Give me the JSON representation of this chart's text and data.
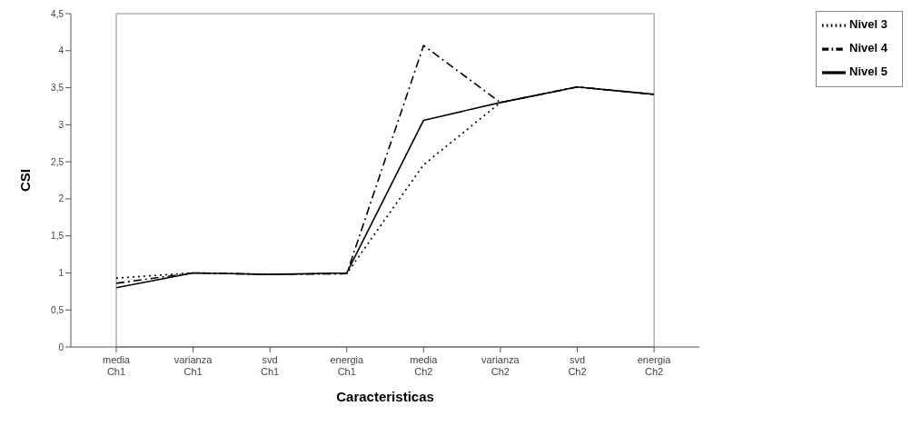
{
  "chart_data": {
    "type": "line",
    "xlabel": "Caracteristicas",
    "ylabel": "CSI",
    "categories": [
      "media Ch1",
      "varianza Ch1",
      "svd Ch1",
      "energia Ch1",
      "media Ch2",
      "varianza Ch2",
      "svd Ch2",
      "energia Ch2"
    ],
    "series": [
      {
        "name": "Nivel 3",
        "color": "#000000",
        "line_style": "dotted",
        "values": [
          0.93,
          1.0,
          0.98,
          0.99,
          2.46,
          3.3,
          3.51,
          3.41
        ]
      },
      {
        "name": "Nivel 4",
        "color": "#000000",
        "line_style": "dashed",
        "values": [
          0.86,
          1.0,
          0.98,
          0.99,
          4.07,
          3.3,
          3.51,
          3.41
        ]
      },
      {
        "name": "Nivel 5",
        "color": "#000000",
        "line_style": "solid",
        "values": [
          0.8,
          1.0,
          0.98,
          1.0,
          3.06,
          3.3,
          3.51,
          3.41
        ]
      }
    ],
    "ylim": [
      0,
      4.5
    ],
    "yticks": [
      0,
      {
        "value": 0.5,
        "label": "0,5"
      },
      1,
      {
        "value": 1.5,
        "label": "1,5"
      },
      2,
      {
        "value": 2.5,
        "label": "2,5"
      },
      3,
      {
        "value": 3.5,
        "label": "3,5"
      },
      4,
      {
        "value": 4.5,
        "label": "4,5"
      }
    ],
    "grid": false,
    "legend": "top right",
    "marker": "none"
  }
}
